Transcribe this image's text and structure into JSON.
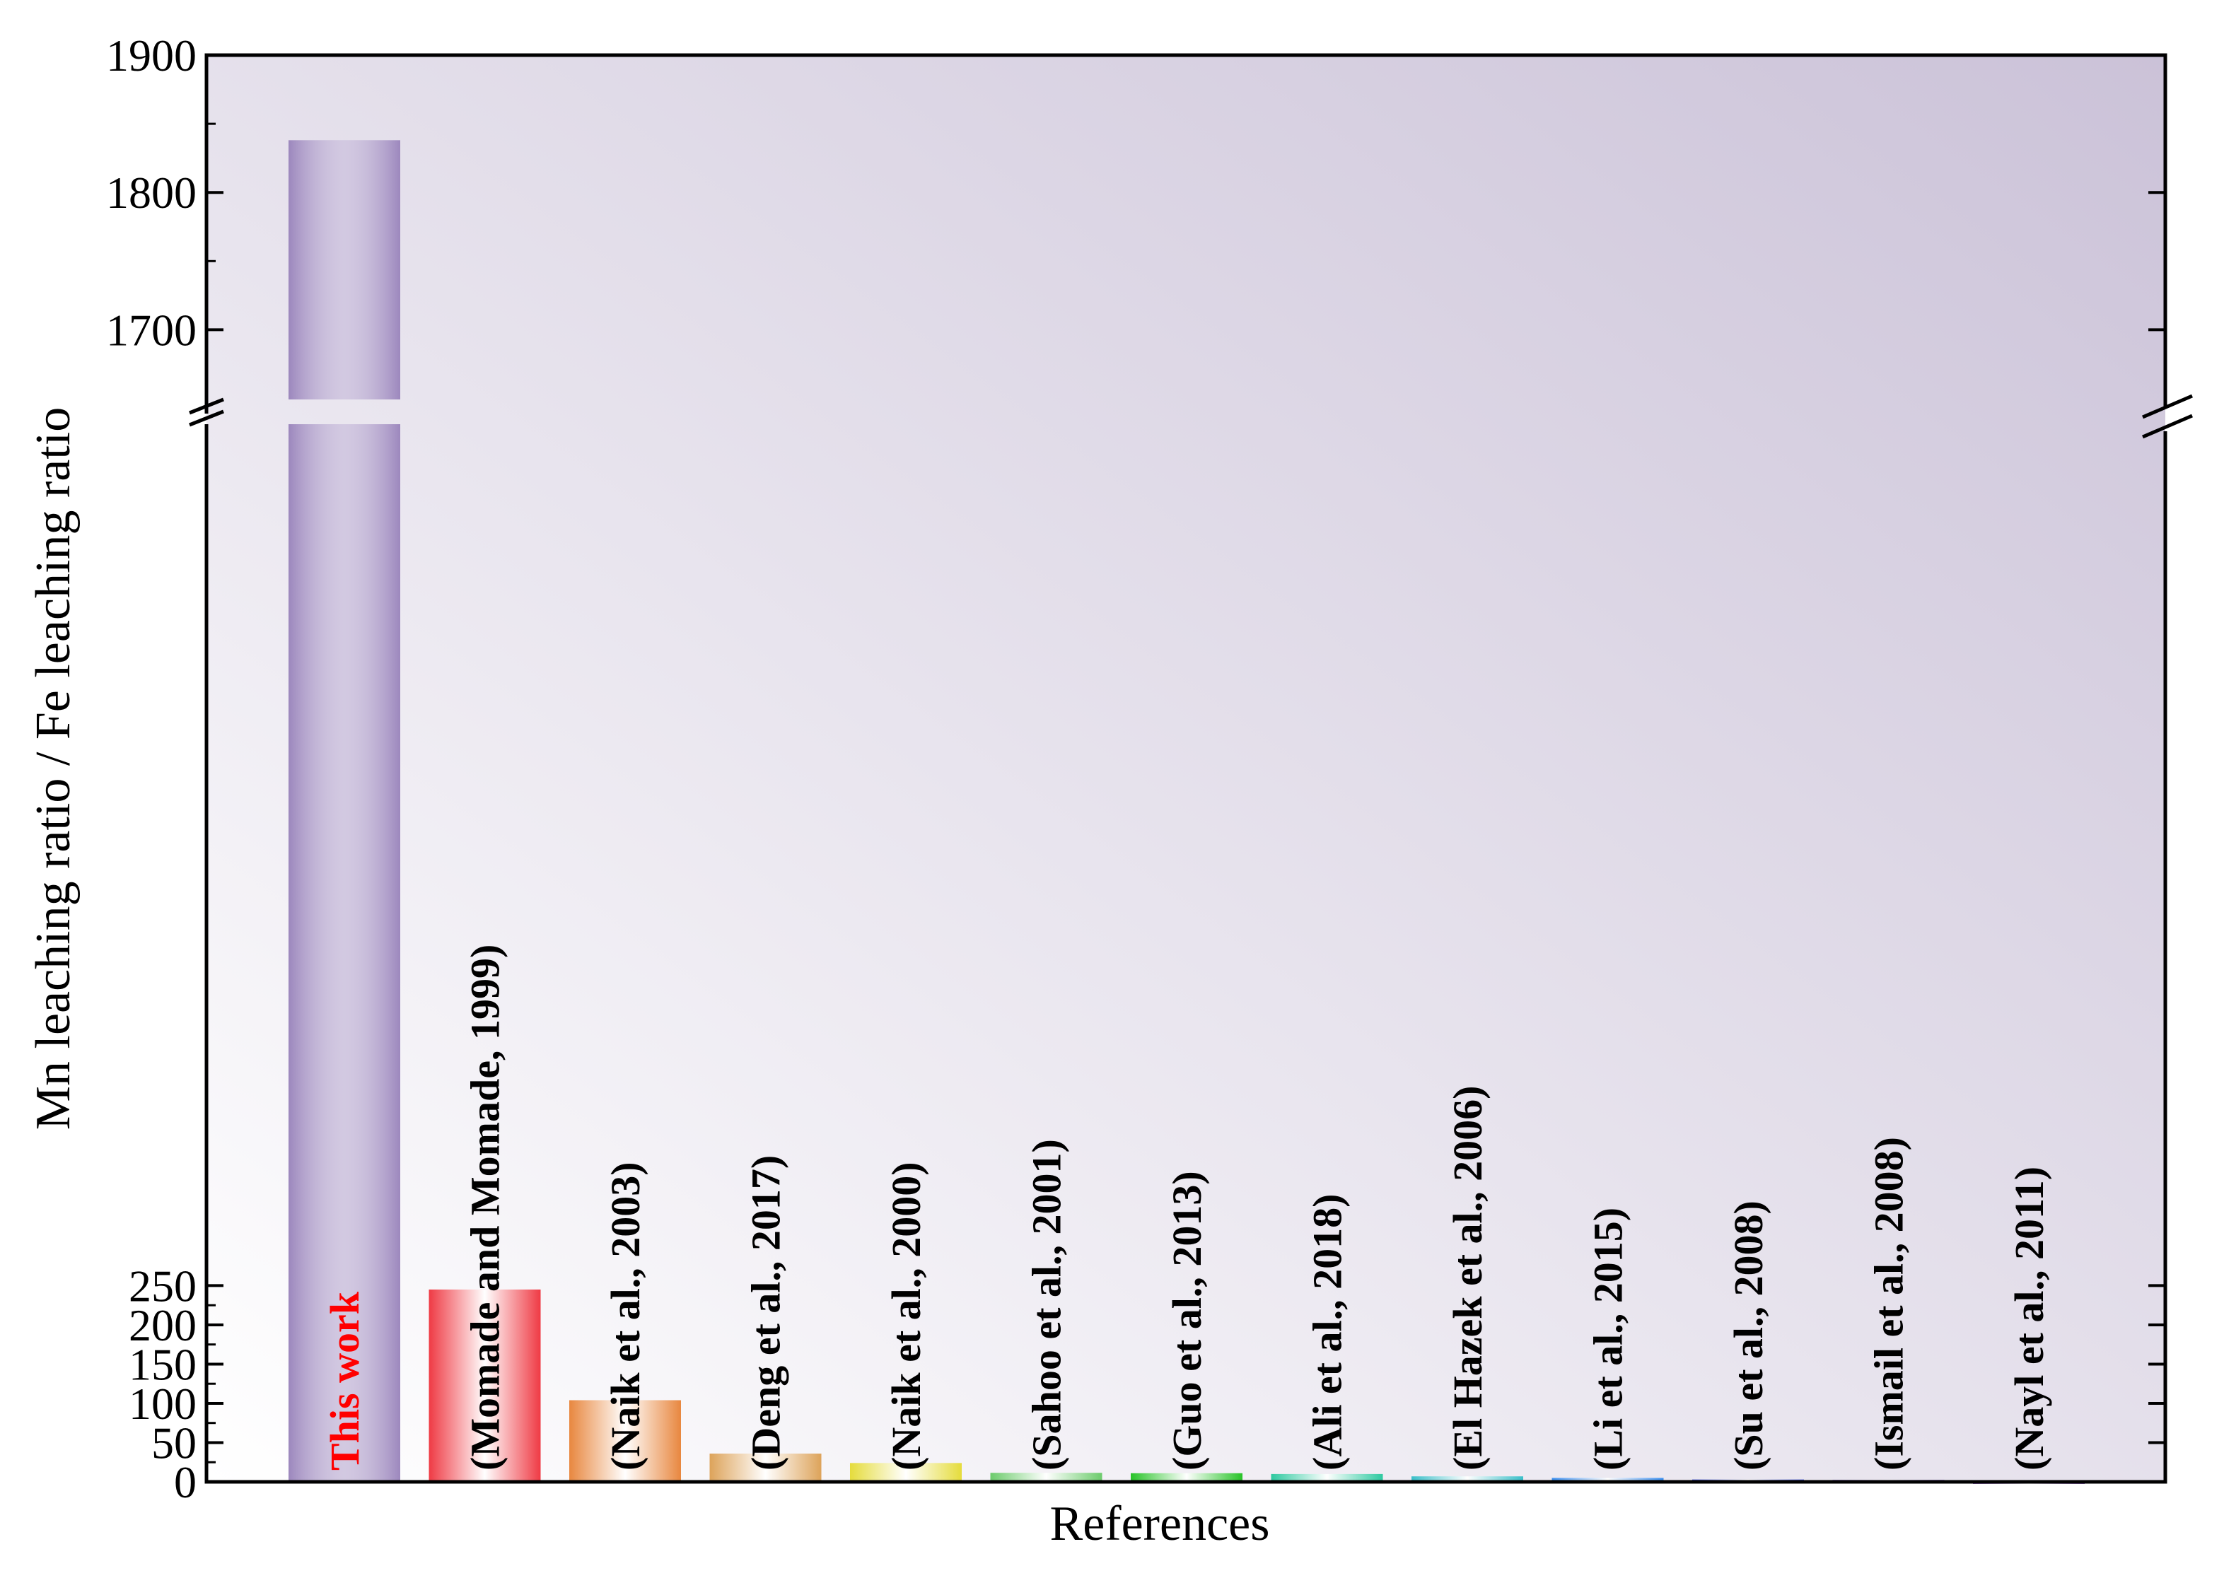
{
  "chart_data": {
    "type": "bar",
    "xlabel": "References",
    "ylabel": "Mn leaching ratio / Fe leaching ratio",
    "axis_break": {
      "lower_ylim": [
        0,
        270
      ],
      "upper_ylim": [
        1660,
        1900
      ]
    },
    "lower_yticks": [
      0,
      50,
      100,
      150,
      200,
      250
    ],
    "upper_yticks": [
      1700,
      1800,
      1900
    ],
    "categories": [
      "This work",
      "(Momade and Momade, 1999)",
      "(Naik et al., 2003)",
      "(Deng et al., 2017)",
      "(Naik et al., 2000)",
      "(Sahoo et al., 2001)",
      "(Guo et al., 2013)",
      "(Ali et al., 2018)",
      "(El Hazek et al., 2006)",
      "(Li et al., 2015)",
      "(Su et al., 2008)",
      "(Ismail et al., 2008)",
      "(Nayl et al., 2011)"
    ],
    "values": [
      1838,
      245,
      104,
      36,
      24,
      11.5,
      11,
      10,
      7,
      5,
      3,
      2.5,
      1
    ],
    "bar_colors": [
      "#9c87bd",
      "#ef3a44",
      "#e8873f",
      "#dda35a",
      "#e5dc3c",
      "#6ccb6c",
      "#27c327",
      "#2ec9a0",
      "#3abfc9",
      "#3b8ff0",
      "#3a4fd9",
      "#6a3fd6",
      "#6b2ea8"
    ],
    "label_colors": [
      "#ff0000",
      "#000000",
      "#000000",
      "#000000",
      "#000000",
      "#000000",
      "#000000",
      "#000000",
      "#000000",
      "#000000",
      "#000000",
      "#000000",
      "#000000"
    ]
  }
}
